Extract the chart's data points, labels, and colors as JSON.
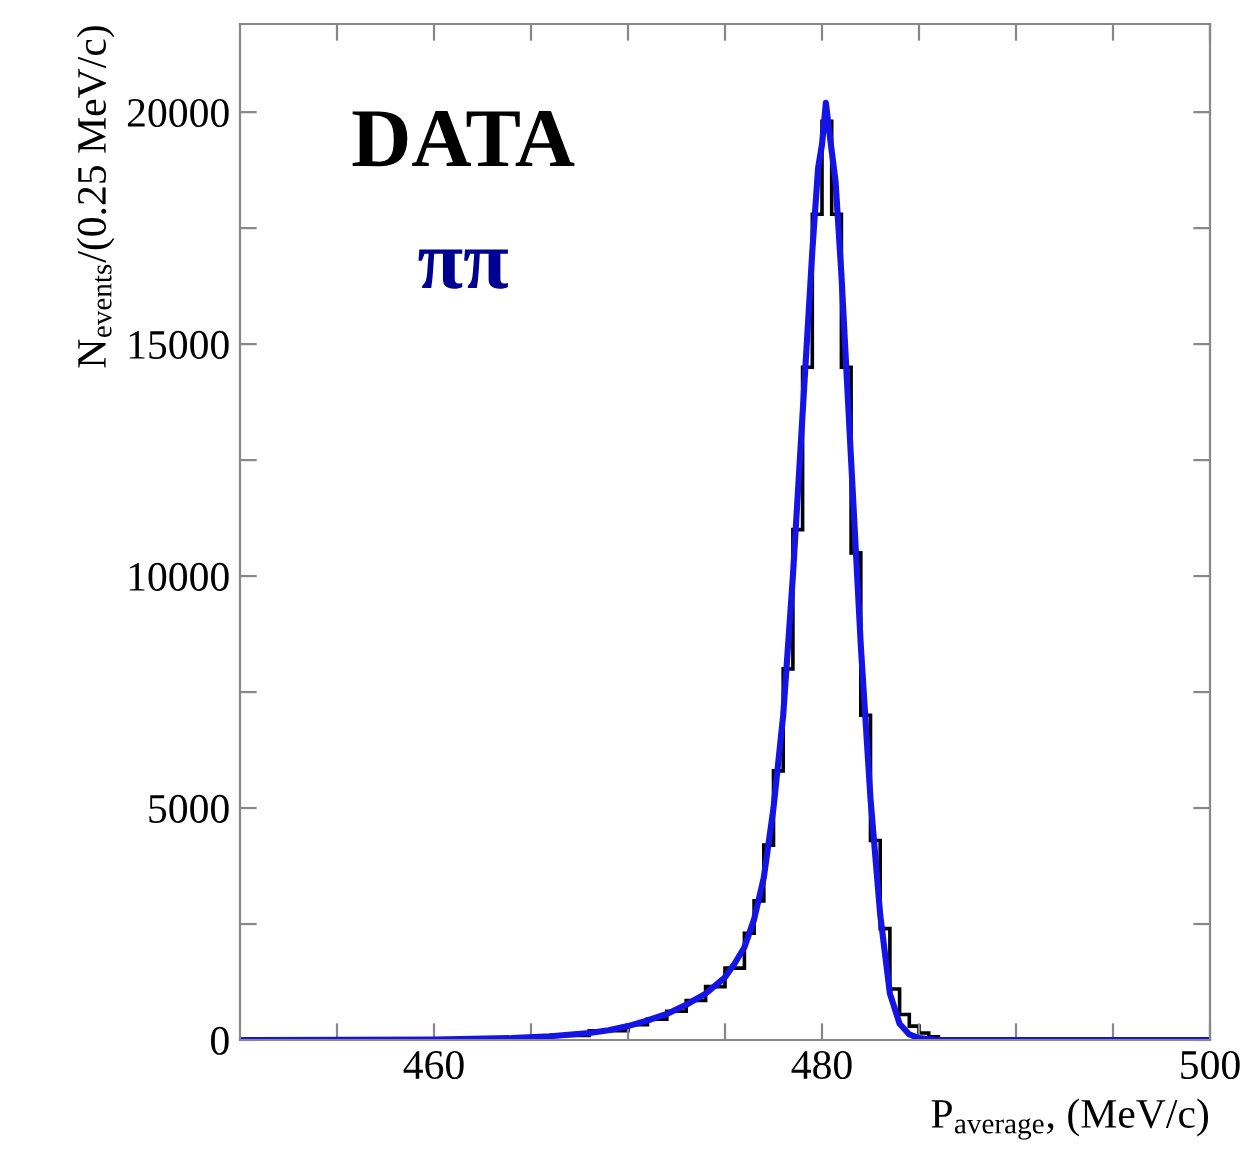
{
  "chart_data": {
    "type": "histogram",
    "xlabel": "P$_{average}$, (MeV/c)",
    "ylabel": "N$_{events}$/(0.25 MeV/c)",
    "annotations": [
      "DATA",
      "ππ"
    ],
    "bins": [
      450,
      462,
      464,
      466,
      468,
      470,
      471,
      472,
      473,
      474,
      475,
      476,
      476.5,
      477,
      477.5,
      478,
      478.5,
      479,
      479.5,
      480,
      480.5,
      481,
      481.5,
      482,
      482.5,
      483,
      483.5,
      484,
      484.5,
      485,
      485.5,
      486,
      488,
      500
    ],
    "series": [
      {
        "color": "#000000",
        "values": [
          0,
          20,
          50,
          100,
          200,
          330,
          450,
          620,
          850,
          1150,
          1550,
          2300,
          3000,
          4200,
          5800,
          8000,
          11000,
          14500,
          17800,
          19800,
          17800,
          14500,
          10500,
          7000,
          4300,
          2400,
          1100,
          550,
          300,
          150,
          70,
          20,
          0
        ]
      },
      {
        "type": "line",
        "color": "#1414e6",
        "x": [
          450,
          460,
          464,
          466,
          468,
          469,
          470,
          471,
          472,
          473,
          474,
          475,
          475.5,
          476,
          476.5,
          477,
          477.5,
          478,
          478.5,
          479,
          479.5,
          479.8,
          480,
          480.2,
          480.4,
          480.7,
          481,
          481.5,
          482,
          482.5,
          483,
          483.5,
          484,
          484.5,
          485,
          486,
          500
        ],
        "values": [
          0,
          10,
          40,
          80,
          150,
          210,
          300,
          420,
          560,
          760,
          1000,
          1350,
          1650,
          2000,
          2600,
          3500,
          5000,
          7000,
          10000,
          13500,
          17000,
          18800,
          19300,
          20200,
          19500,
          18500,
          16500,
          12500,
          8500,
          5200,
          2700,
          1000,
          350,
          120,
          40,
          0,
          0
        ]
      }
    ],
    "xlim": [
      450,
      500
    ],
    "xticks": [
      {
        "value": 455,
        "label": null
      },
      460,
      {
        "value": 465,
        "label": null
      },
      {
        "value": 470,
        "label": null
      },
      {
        "value": 475,
        "label": null
      },
      480,
      {
        "value": 485,
        "label": null
      },
      {
        "value": 490,
        "label": null
      },
      {
        "value": 495,
        "label": null
      },
      500
    ],
    "ylim": [
      0,
      21900
    ],
    "yticks": [
      0,
      {
        "value": 2500,
        "label": null
      },
      5000,
      {
        "value": 7500,
        "label": null
      },
      10000,
      {
        "value": 12500,
        "label": null
      },
      15000,
      {
        "value": 17500,
        "label": null
      },
      20000
    ],
    "grid": false,
    "legend": false
  }
}
